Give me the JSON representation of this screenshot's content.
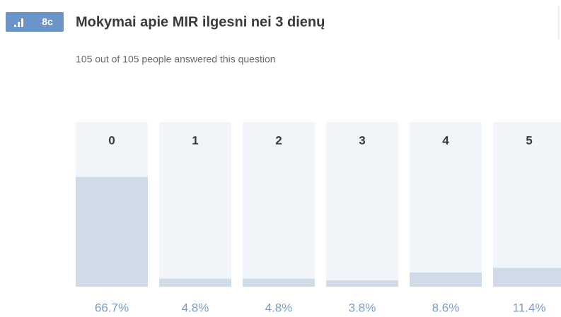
{
  "chart_data": {
    "type": "bar",
    "badge": "8c",
    "title": "Mokymai apie MIR ilgesni nei 3 dienų",
    "subtitle": "105 out of 105 people answered this question",
    "categories": [
      "0",
      "1",
      "2",
      "3",
      "4",
      "5"
    ],
    "values": [
      66.7,
      4.8,
      4.8,
      3.8,
      8.6,
      11.4
    ],
    "value_labels": [
      "66.7%",
      "4.8%",
      "4.8%",
      "3.8%",
      "8.6%",
      "11.4%"
    ],
    "ylim": [
      0,
      100
    ],
    "color": "#cfdbe8"
  }
}
